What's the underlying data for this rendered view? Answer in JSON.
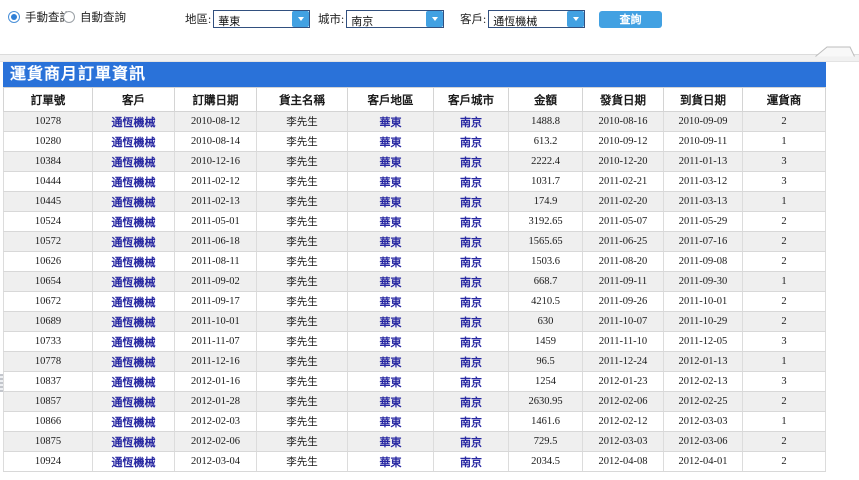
{
  "toolbar": {
    "radio_manual": "手動查詢",
    "radio_auto": "自動查詢",
    "region_label": "地區:",
    "region_value": "華東",
    "city_label": "城市:",
    "city_value": "南京",
    "customer_label": "客戶:",
    "customer_value": "通恆機械",
    "query_button": "查詢"
  },
  "panel": {
    "title": "運貨商月訂單資訊"
  },
  "table": {
    "headers": [
      "訂單號",
      "客戶",
      "訂購日期",
      "貨主名稱",
      "客戶地區",
      "客戶城市",
      "金額",
      "發貨日期",
      "到貨日期",
      "運貨商"
    ],
    "col_keys": [
      "order-id",
      "customer",
      "order-date",
      "owner-name",
      "customer-region",
      "customer-city",
      "amount",
      "ship-date",
      "arrival-date",
      "shipper"
    ],
    "link_columns": [
      1,
      4,
      5
    ],
    "rows": [
      [
        "10278",
        "通恆機械",
        "2010-08-12",
        "李先生",
        "華東",
        "南京",
        "1488.8",
        "2010-08-16",
        "2010-09-09",
        "2"
      ],
      [
        "10280",
        "通恆機械",
        "2010-08-14",
        "李先生",
        "華東",
        "南京",
        "613.2",
        "2010-09-12",
        "2010-09-11",
        "1"
      ],
      [
        "10384",
        "通恆機械",
        "2010-12-16",
        "李先生",
        "華東",
        "南京",
        "2222.4",
        "2010-12-20",
        "2011-01-13",
        "3"
      ],
      [
        "10444",
        "通恆機械",
        "2011-02-12",
        "李先生",
        "華東",
        "南京",
        "1031.7",
        "2011-02-21",
        "2011-03-12",
        "3"
      ],
      [
        "10445",
        "通恆機械",
        "2011-02-13",
        "李先生",
        "華東",
        "南京",
        "174.9",
        "2011-02-20",
        "2011-03-13",
        "1"
      ],
      [
        "10524",
        "通恆機械",
        "2011-05-01",
        "李先生",
        "華東",
        "南京",
        "3192.65",
        "2011-05-07",
        "2011-05-29",
        "2"
      ],
      [
        "10572",
        "通恆機械",
        "2011-06-18",
        "李先生",
        "華東",
        "南京",
        "1565.65",
        "2011-06-25",
        "2011-07-16",
        "2"
      ],
      [
        "10626",
        "通恆機械",
        "2011-08-11",
        "李先生",
        "華東",
        "南京",
        "1503.6",
        "2011-08-20",
        "2011-09-08",
        "2"
      ],
      [
        "10654",
        "通恆機械",
        "2011-09-02",
        "李先生",
        "華東",
        "南京",
        "668.7",
        "2011-09-11",
        "2011-09-30",
        "1"
      ],
      [
        "10672",
        "通恆機械",
        "2011-09-17",
        "李先生",
        "華東",
        "南京",
        "4210.5",
        "2011-09-26",
        "2011-10-01",
        "2"
      ],
      [
        "10689",
        "通恆機械",
        "2011-10-01",
        "李先生",
        "華東",
        "南京",
        "630",
        "2011-10-07",
        "2011-10-29",
        "2"
      ],
      [
        "10733",
        "通恆機械",
        "2011-11-07",
        "李先生",
        "華東",
        "南京",
        "1459",
        "2011-11-10",
        "2011-12-05",
        "3"
      ],
      [
        "10778",
        "通恆機械",
        "2011-12-16",
        "李先生",
        "華東",
        "南京",
        "96.5",
        "2011-12-24",
        "2012-01-13",
        "1"
      ],
      [
        "10837",
        "通恆機械",
        "2012-01-16",
        "李先生",
        "華東",
        "南京",
        "1254",
        "2012-01-23",
        "2012-02-13",
        "3"
      ],
      [
        "10857",
        "通恆機械",
        "2012-01-28",
        "李先生",
        "華東",
        "南京",
        "2630.95",
        "2012-02-06",
        "2012-02-25",
        "2"
      ],
      [
        "10866",
        "通恆機械",
        "2012-02-03",
        "李先生",
        "華東",
        "南京",
        "1461.6",
        "2012-02-12",
        "2012-03-03",
        "1"
      ],
      [
        "10875",
        "通恆機械",
        "2012-02-06",
        "李先生",
        "華東",
        "南京",
        "729.5",
        "2012-03-03",
        "2012-03-06",
        "2"
      ],
      [
        "10924",
        "通恆機械",
        "2012-03-04",
        "李先生",
        "華東",
        "南京",
        "2034.5",
        "2012-04-08",
        "2012-04-01",
        "2"
      ]
    ]
  },
  "colors": {
    "accent_blue": "#2a72d9",
    "button_blue": "#42a1e2",
    "link_blue": "#2828a2",
    "row_stripe": "#efefef"
  }
}
